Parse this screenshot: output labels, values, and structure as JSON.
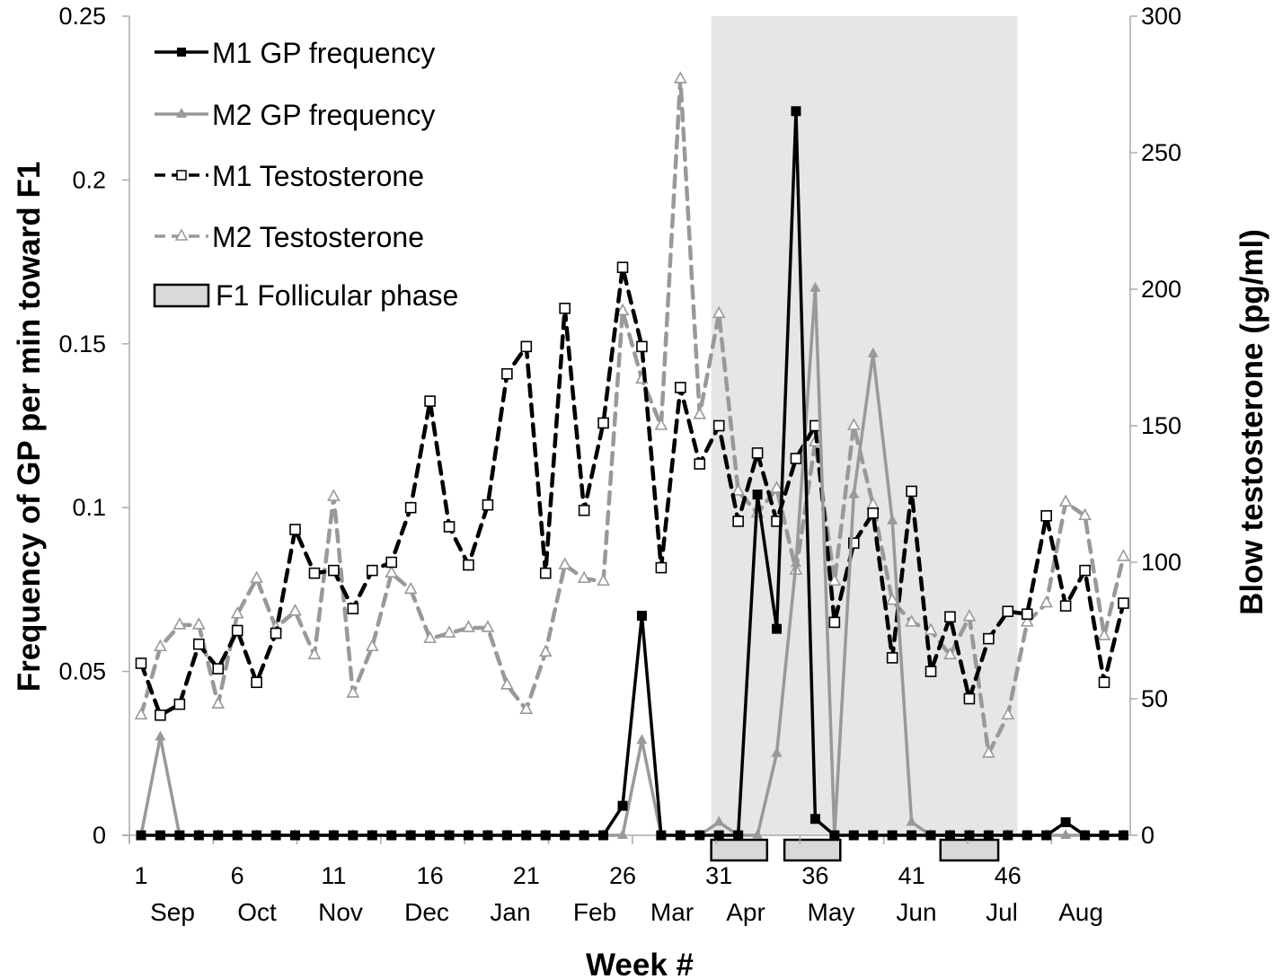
{
  "chart_data": {
    "type": "line",
    "title": "",
    "xlabel": "Week #",
    "ylabel_left": "Frequency of GP per min toward F1",
    "ylabel_right": "Blow testosterone (pg/ml)",
    "ylim_left": [
      0,
      0.25
    ],
    "ylim_right": [
      0,
      300
    ],
    "yticks_left": [
      "0",
      "0.05",
      "0.1",
      "0.15",
      "0.2",
      "0.25"
    ],
    "yticks_right": [
      "0",
      "50",
      "100",
      "150",
      "200",
      "250",
      "300"
    ],
    "xticks": [
      "1",
      "6",
      "11",
      "16",
      "21",
      "26",
      "31",
      "36",
      "41",
      "46"
    ],
    "months": [
      "Sep",
      "Oct",
      "Nov",
      "Dec",
      "Jan",
      "Feb",
      "Mar",
      "Apr",
      "May",
      "Jun",
      "Jul",
      "Aug"
    ],
    "grid": false,
    "legend_position": "top-left",
    "x": [
      1,
      2,
      3,
      4,
      5,
      6,
      7,
      8,
      9,
      10,
      11,
      12,
      13,
      14,
      15,
      16,
      17,
      18,
      19,
      20,
      21,
      22,
      23,
      24,
      25,
      26,
      27,
      28,
      29,
      30,
      31,
      32,
      33,
      34,
      35,
      36,
      37,
      38,
      39,
      40,
      41,
      42,
      43,
      44,
      45,
      46,
      47,
      48,
      49,
      50,
      51,
      52
    ],
    "series": [
      {
        "name": "M1 GP frequency",
        "axis": "left",
        "color": "#000000",
        "style": "solid",
        "marker": "filled-square",
        "values": [
          0,
          0,
          0,
          0,
          0,
          0,
          0,
          0,
          0,
          0,
          0,
          0,
          0,
          0,
          0,
          0,
          0,
          0,
          0,
          0,
          0,
          0,
          0,
          0,
          0,
          0.009,
          0.067,
          0,
          0,
          0,
          0,
          0,
          0.104,
          0.063,
          0.221,
          0.005,
          0,
          0,
          0,
          0,
          0,
          0,
          0,
          0,
          0,
          0,
          0,
          0,
          0.004,
          0,
          0,
          0
        ]
      },
      {
        "name": "M2 GP frequency",
        "axis": "left",
        "color": "#999999",
        "style": "solid",
        "marker": "filled-triangle",
        "values": [
          0,
          0.03,
          0,
          0,
          0,
          0,
          0,
          0,
          0,
          0,
          0,
          0,
          0,
          0,
          0,
          0,
          0,
          0,
          0,
          0,
          0,
          0,
          0,
          0,
          0,
          0,
          0.029,
          0,
          0,
          0,
          0.004,
          0,
          0,
          0.025,
          0.083,
          0.167,
          0,
          0.104,
          0.147,
          0.096,
          0.004,
          0,
          0,
          0,
          0,
          0,
          0,
          0,
          0,
          0,
          0,
          0
        ]
      },
      {
        "name": "M1 Testosterone",
        "axis": "right",
        "color": "#000000",
        "style": "dashed",
        "marker": "open-square",
        "values": [
          63,
          44,
          48,
          70,
          61,
          75,
          56,
          74,
          112,
          96,
          97,
          83,
          97,
          100,
          120,
          159,
          113,
          99,
          121,
          169,
          179,
          96,
          193,
          119,
          151,
          208,
          179,
          98,
          164,
          136,
          150,
          115,
          140,
          115,
          138,
          150,
          78,
          107,
          118,
          65,
          126,
          60,
          80,
          50,
          72,
          82,
          81,
          117,
          84,
          97,
          56,
          85
        ]
      },
      {
        "name": "M2 Testosterone",
        "axis": "right",
        "color": "#999999",
        "style": "dashed",
        "marker": "open-triangle",
        "values": [
          44,
          69,
          77,
          77,
          48,
          81,
          94,
          76,
          82,
          66,
          124,
          52,
          69,
          96,
          90,
          72,
          74,
          76,
          76,
          55,
          46,
          67,
          99,
          94,
          93,
          192,
          167,
          150,
          277,
          154,
          191,
          126,
          118,
          127,
          97,
          144,
          93,
          150,
          121,
          86,
          78,
          75,
          66,
          80,
          30,
          44,
          78,
          85,
          122,
          117,
          73,
          102
        ]
      }
    ],
    "shaded_region_weeks": [
      30.6,
      46.5
    ],
    "follicular_phase": {
      "name": "F1 Follicular phase",
      "color": "#d9d9d9",
      "weeks": [
        [
          30.6,
          33.5
        ],
        [
          34.4,
          37.3
        ],
        [
          42.5,
          45.5
        ]
      ]
    },
    "shade_color": "#e6e6e6"
  }
}
